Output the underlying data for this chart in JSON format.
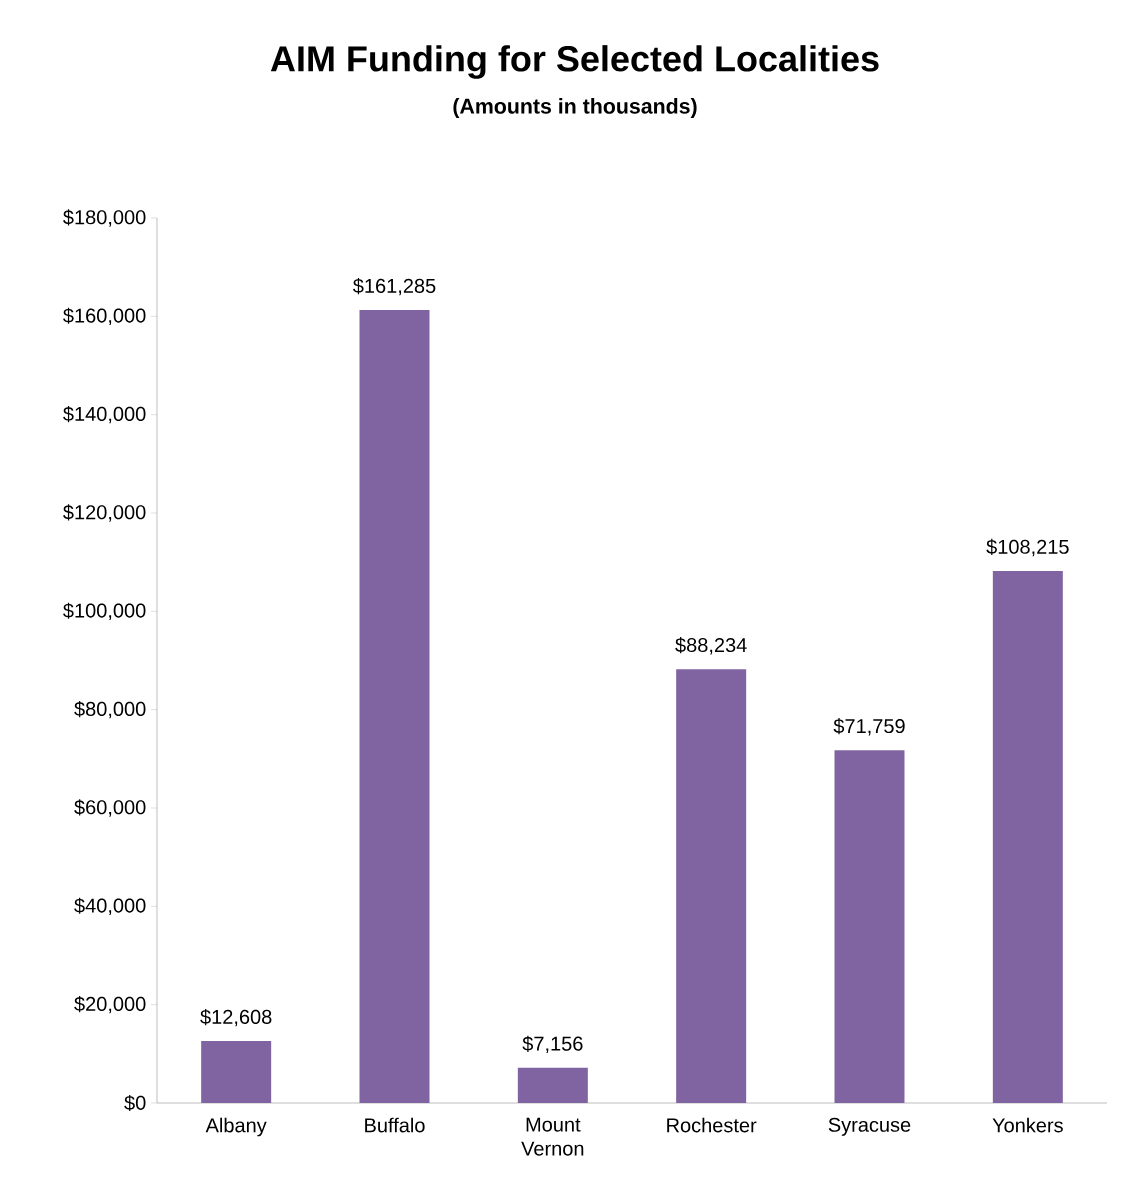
{
  "chart_data": {
    "type": "bar",
    "title": "AIM Funding for Selected Localities",
    "subtitle": "(Amounts  in thousands)",
    "categories": [
      "Albany",
      "Buffalo",
      "Mount Vernon",
      "Rochester",
      "Syracuse",
      "Yonkers"
    ],
    "values": [
      12608,
      161285,
      7156,
      88234,
      71759,
      108215
    ],
    "value_labels": [
      "$12,608",
      "$161,285",
      "$7,156",
      "$88,234",
      "$71,759",
      "$108,215"
    ],
    "color": "#8064a2",
    "ylim": [
      0,
      180000
    ],
    "yticks": [
      {
        "value": 0,
        "label": "$0"
      },
      {
        "value": 20000,
        "label": "$20,000"
      },
      {
        "value": 40000,
        "label": "$40,000"
      },
      {
        "value": 60000,
        "label": "$60,000"
      },
      {
        "value": 80000,
        "label": "$80,000"
      },
      {
        "value": 100000,
        "label": "$100,000"
      },
      {
        "value": 120000,
        "label": "$120,000"
      },
      {
        "value": 140000,
        "label": "$140,000"
      },
      {
        "value": 160000,
        "label": "$160,000"
      },
      {
        "value": 180000,
        "label": "$180,000"
      }
    ],
    "grid": false
  }
}
